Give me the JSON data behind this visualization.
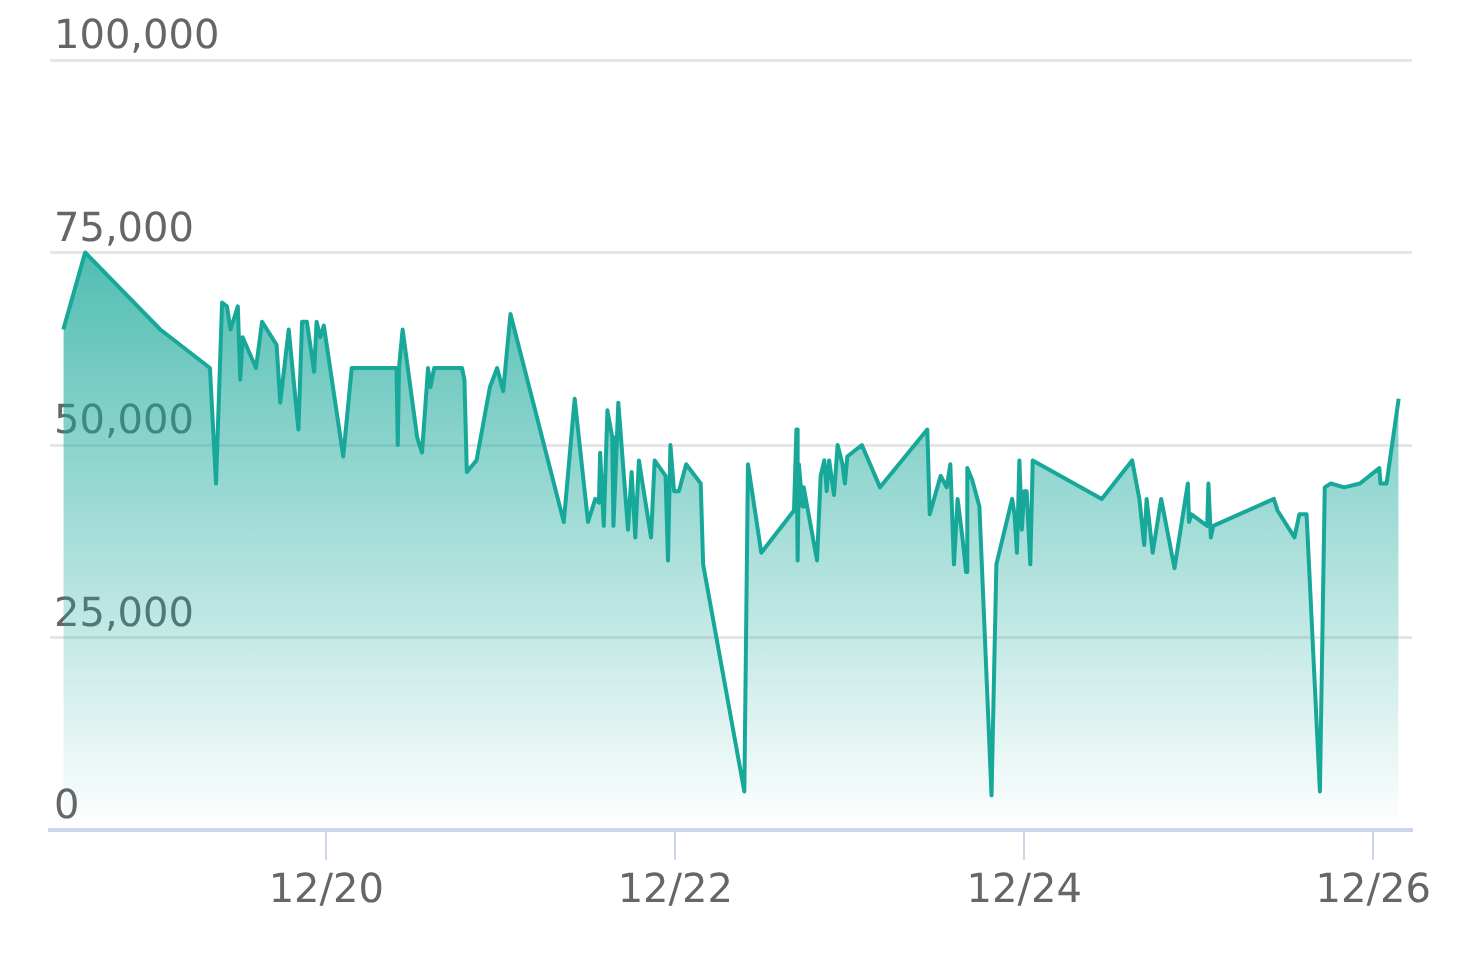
{
  "chart_data": {
    "type": "area",
    "color": "#17a89a",
    "x": [
      "--12-18T11:50",
      "--12-18T14:50",
      "--12-19T01:10",
      "--12-19T08:00",
      "--12-19T08:50",
      "--12-19T09:40",
      "--12-19T10:20",
      "--12-19T10:50",
      "--12-19T11:50",
      "--12-19T12:10",
      "--12-19T12:30",
      "--12-19T14:20",
      "--12-19T15:10",
      "--12-19T17:10",
      "--12-19T17:40",
      "--12-19T18:50",
      "--12-19T20:10",
      "--12-19T20:40",
      "--12-19T21:20",
      "--12-19T22:20",
      "--12-19T22:40",
      "--12-19T23:10",
      "--12-19T23:40",
      "--12-20T02:20",
      "--12-20T03:30",
      "--12-20T09:40",
      "--12-20T09:50",
      "--12-20T10:00",
      "--12-20T10:30",
      "--12-20T12:30",
      "--12-20T13:10",
      "--12-20T14:00",
      "--12-20T14:20",
      "--12-20T14:50",
      "--12-20T18:40",
      "--12-20T19:00",
      "--12-20T19:20",
      "--12-20T20:40",
      "--12-20T22:30",
      "--12-20T23:30",
      "--12-21T00:20",
      "--12-21T01:20",
      "--12-21T08:40",
      "--12-21T10:10",
      "--12-21T12:00",
      "--12-21T13:00",
      "--12-21T13:30",
      "--12-21T13:40",
      "--12-21T14:10",
      "--12-21T14:40",
      "--12-21T15:20",
      "--12-21T15:30",
      "--12-21T16:10",
      "--12-21T17:30",
      "--12-21T18:00",
      "--12-21T18:30",
      "--12-21T19:00",
      "--12-21T20:40",
      "--12-21T21:10",
      "--12-21T22:40",
      "--12-21T23:00",
      "--12-21T23:20",
      "--12-21T23:50",
      "--12-22T00:30",
      "--12-22T01:30",
      "--12-22T03:30",
      "--12-22T03:50",
      "--12-22T09:30",
      "--12-22T10:00",
      "--12-22T11:50",
      "--12-22T16:20",
      "--12-22T16:40",
      "--12-22T16:50",
      "--12-22T17:00",
      "--12-22T17:30",
      "--12-22T17:40",
      "--12-22T19:30",
      "--12-22T20:00",
      "--12-22T20:30",
      "--12-22T20:50",
      "--12-22T21:10",
      "--12-22T21:50",
      "--12-22T22:20",
      "--12-22T23:00",
      "--12-22T23:20",
      "--12-22T23:40",
      "--12-23T01:40",
      "--12-23T04:10",
      "--12-23T10:40",
      "--12-23T11:00",
      "--12-23T12:30",
      "--12-23T13:20",
      "--12-23T13:50",
      "--12-23T14:20",
      "--12-23T14:50",
      "--12-23T15:30",
      "--12-23T16:00",
      "--12-23T16:10",
      "--12-23T16:50",
      "--12-23T17:50",
      "--12-23T19:30",
      "--12-23T20:10",
      "--12-23T22:20",
      "--12-23T22:40",
      "--12-23T23:00",
      "--12-23T23:20",
      "--12-23T23:40",
      "--12-24T00:00",
      "--12-24T00:20",
      "--12-24T00:50",
      "--12-24T01:10",
      "--12-24T10:40",
      "--12-24T14:50",
      "--12-24T15:50",
      "--12-24T16:30",
      "--12-24T16:50",
      "--12-24T17:40",
      "--12-24T18:50",
      "--12-24T20:40",
      "--12-24T22:30",
      "--12-24T22:40",
      "--12-24T23:00",
      "--12-25T01:10",
      "--12-25T01:20",
      "--12-25T01:40",
      "--12-25T02:00",
      "--12-25T10:20",
      "--12-25T10:50",
      "--12-25T13:10",
      "--12-25T13:50",
      "--12-25T14:50",
      "--12-25T16:40",
      "--12-25T17:20",
      "--12-25T18:10",
      "--12-25T20:00",
      "--12-25T22:10",
      "--12-26T00:50",
      "--12-26T01:00",
      "--12-26T01:50",
      "--12-26T03:30"
    ],
    "values": [
      65000,
      75000,
      65000,
      60000,
      45000,
      68500,
      68000,
      65000,
      68000,
      58500,
      64000,
      60000,
      66000,
      63000,
      55500,
      65000,
      52000,
      66000,
      66000,
      59500,
      66000,
      64000,
      65500,
      48500,
      60000,
      60000,
      50000,
      60000,
      65000,
      51000,
      49000,
      60000,
      57500,
      60000,
      60000,
      58500,
      46500,
      48000,
      57500,
      60000,
      57000,
      67000,
      40000,
      56000,
      40000,
      43000,
      42500,
      49000,
      39500,
      54500,
      51000,
      39500,
      55500,
      39000,
      46500,
      38000,
      48000,
      38000,
      48000,
      46000,
      35000,
      50000,
      44000,
      44000,
      47500,
      45000,
      34500,
      5000,
      47500,
      36000,
      41500,
      52000,
      35000,
      47500,
      42000,
      44500,
      35000,
      46000,
      48000,
      44000,
      48000,
      43500,
      50000,
      47500,
      45000,
      48500,
      50000,
      44500,
      52000,
      41000,
      46000,
      44500,
      47500,
      34500,
      43000,
      38000,
      33500,
      47000,
      45500,
      42000,
      4500,
      34500,
      43000,
      41000,
      36000,
      48000,
      39000,
      44000,
      44000,
      34500,
      48000,
      43000,
      48000,
      43000,
      37000,
      43000,
      36000,
      43000,
      34000,
      45000,
      40000,
      41000,
      39500,
      45000,
      38000,
      39500,
      43000,
      41500,
      38000,
      41000,
      41000,
      5000,
      44500,
      45000,
      44500,
      45000,
      47000,
      45000,
      45000,
      56000
    ],
    "xlim": [
      "--12-18T10:00",
      "--12-26T05:20"
    ],
    "xticks": [
      {
        "value": "--12-20",
        "label": "12/20"
      },
      {
        "value": "--12-22",
        "label": "12/22"
      },
      {
        "value": "--12-24",
        "label": "12/24"
      },
      {
        "value": "--12-26",
        "label": "12/26"
      }
    ],
    "ylim": [
      0,
      100000
    ],
    "yticks": [
      0,
      {
        "value": 25000,
        "label": "25,000"
      },
      {
        "value": 50000,
        "label": "50,000"
      },
      {
        "value": 75000,
        "label": "75,000"
      },
      {
        "value": 100000,
        "label": "100,000"
      }
    ],
    "grid": "y",
    "marker": "none",
    "line_style": "solid"
  }
}
